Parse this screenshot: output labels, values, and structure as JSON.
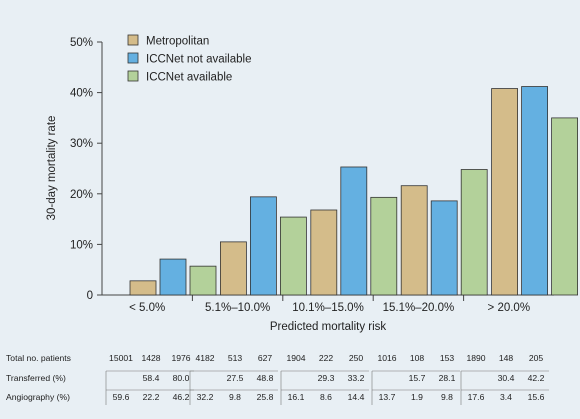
{
  "chart_data": {
    "type": "bar",
    "categories": [
      "< 5.0%",
      "5.1%–10.0%",
      "10.1%–15.0%",
      "15.1%–20.0%",
      "> 20.0%"
    ],
    "series": [
      {
        "name": "Metropolitan",
        "values": [
          2.8,
          10.5,
          16.8,
          21.6,
          40.8
        ]
      },
      {
        "name": "ICCNet not available",
        "values": [
          7.1,
          19.4,
          25.3,
          18.6,
          41.2
        ]
      },
      {
        "name": "ICCNet available",
        "values": [
          5.7,
          15.4,
          19.3,
          24.8,
          35.0
        ]
      }
    ],
    "xlabel": "Predicted mortality risk",
    "ylabel": "30-day mortality rate",
    "ylim": [
      0,
      50
    ],
    "yticks": [
      "0",
      "10%",
      "20%",
      "30%",
      "40%",
      "50%"
    ],
    "legend_position": "top-left",
    "grid": false,
    "colors": [
      "#d4bc8a",
      "#64b0e1",
      "#b3d19a"
    ]
  },
  "table": {
    "rows": [
      {
        "label": "Total no. patients",
        "values": [
          [
            "15001",
            "1428",
            "1976"
          ],
          [
            "4182",
            "513",
            "627"
          ],
          [
            "1904",
            "222",
            "250"
          ],
          [
            "1016",
            "108",
            "153"
          ],
          [
            "1890",
            "148",
            "205"
          ]
        ]
      },
      {
        "label": "Transferred (%)",
        "values": [
          [
            "",
            "58.4",
            "80.0"
          ],
          [
            "",
            "27.5",
            "48.8"
          ],
          [
            "",
            "29.3",
            "33.2"
          ],
          [
            "",
            "15.7",
            "28.1"
          ],
          [
            "",
            "30.4",
            "42.2"
          ]
        ]
      },
      {
        "label": "Angiography (%)",
        "values": [
          [
            "59.6",
            "22.2",
            "46.2"
          ],
          [
            "32.2",
            "9.8",
            "25.8"
          ],
          [
            "16.1",
            "8.6",
            "14.4"
          ],
          [
            "13.7",
            "1.9",
            "9.8"
          ],
          [
            "17.6",
            "3.4",
            "15.6"
          ]
        ]
      }
    ]
  }
}
